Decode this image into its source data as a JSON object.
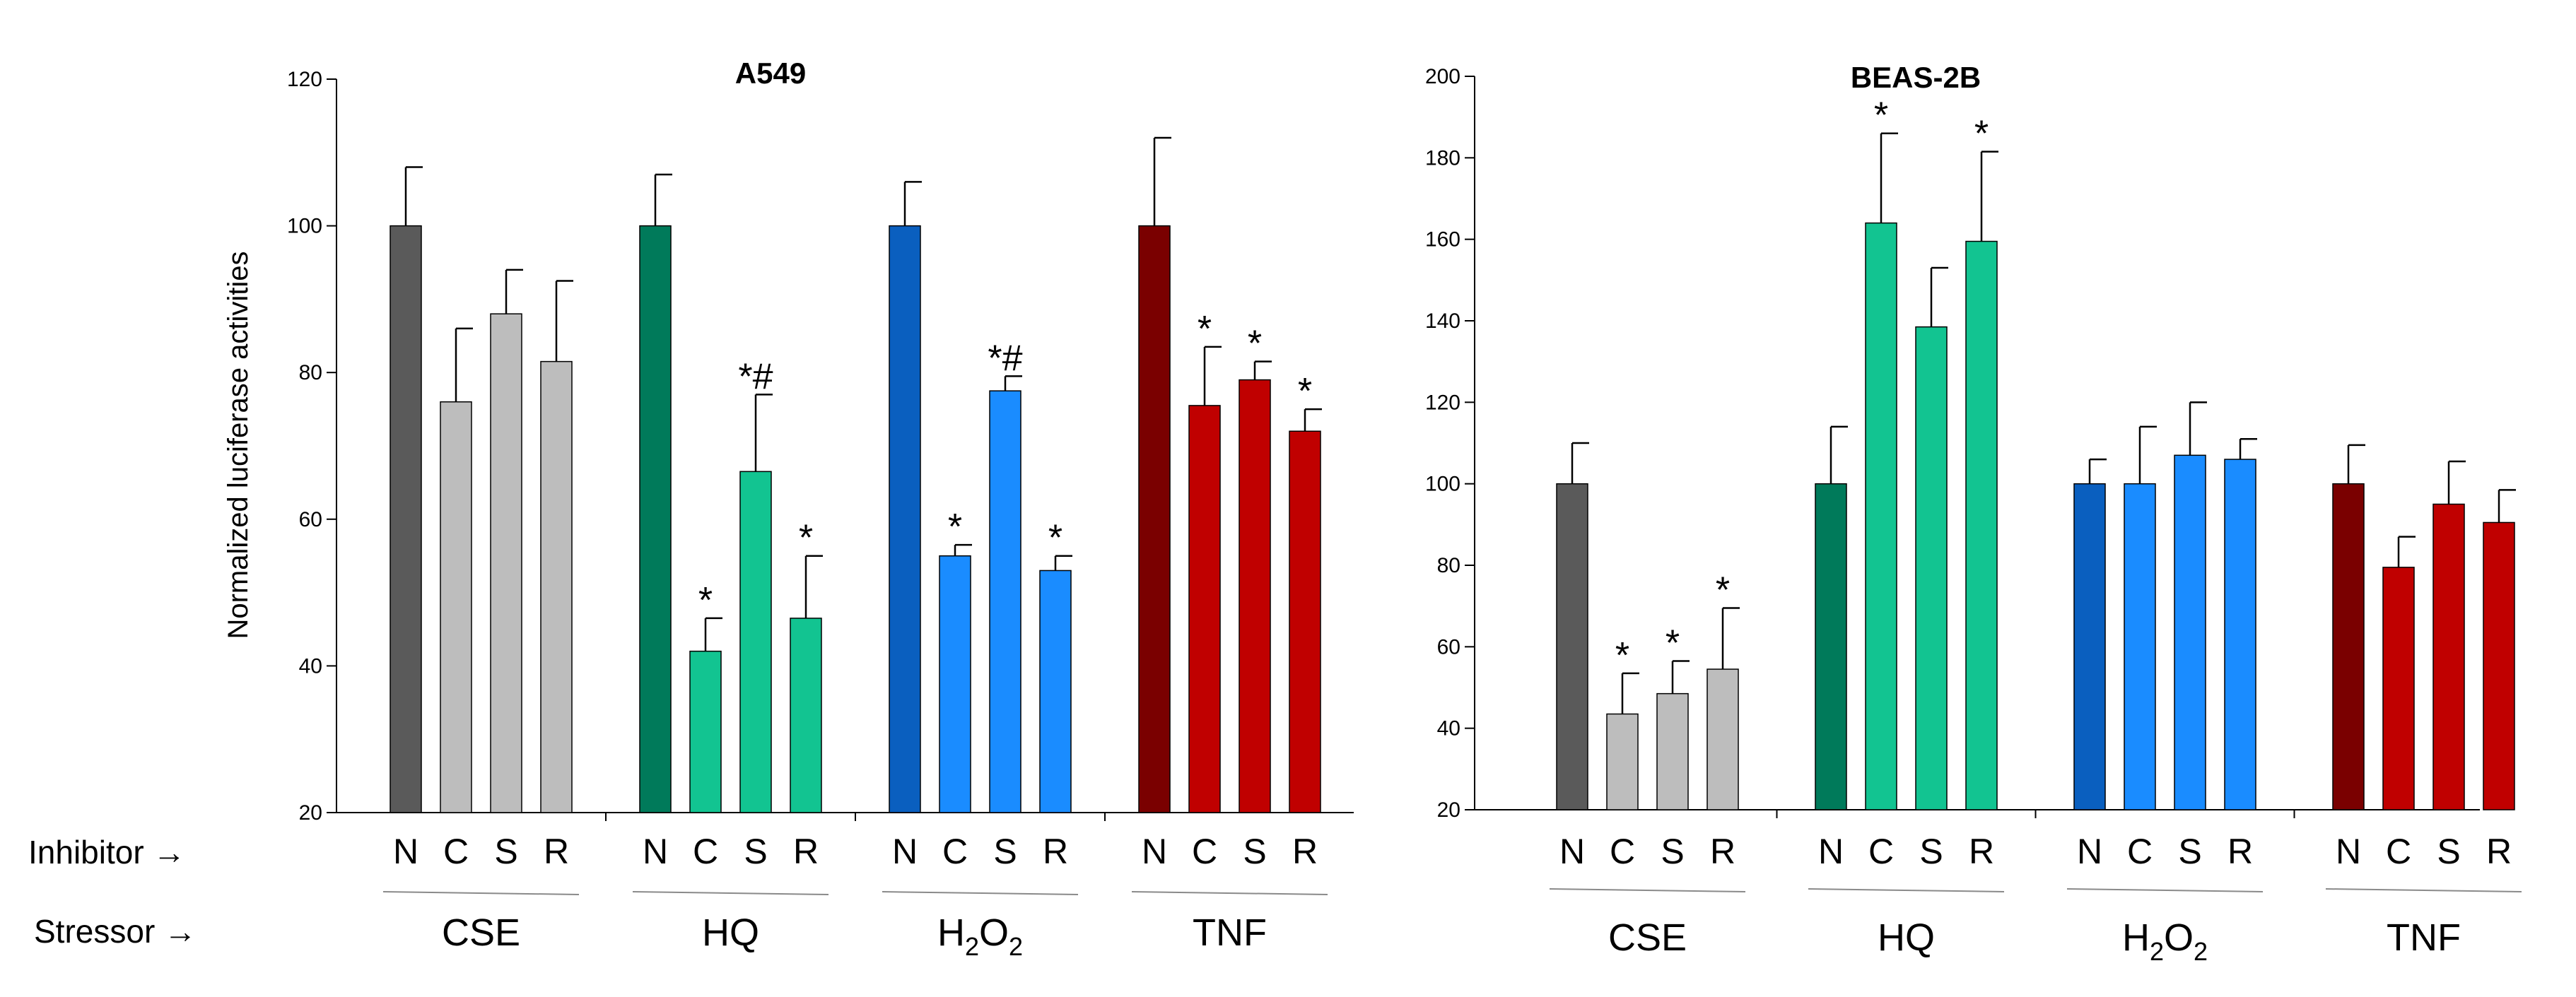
{
  "row_labels": {
    "inhibitor": "Inhibitor →",
    "stressor": "Stressor →"
  },
  "colors": {
    "CSE": {
      "N": "#5a5a5a",
      "inh": "#bdbdbd"
    },
    "HQ": {
      "N": "#007a5a",
      "inh": "#12c491"
    },
    "H2O2": {
      "N": "#0a5fbf",
      "inh": "#1a8cff"
    },
    "TNF": {
      "N": "#7a0000",
      "inh": "#c00000"
    }
  },
  "chart_data": [
    {
      "type": "bar",
      "title": "A549",
      "ylabel": "Normalized luciferase activities",
      "xlabel": "",
      "ylim": [
        20,
        120
      ],
      "yticks": [
        20,
        40,
        60,
        80,
        100,
        120
      ],
      "inhibitors": [
        "N",
        "C",
        "S",
        "R"
      ],
      "groups": [
        {
          "key": "CSE",
          "name": "CSE",
          "values": [
            100,
            76,
            88,
            81.5
          ],
          "errors": [
            8,
            10,
            6,
            11
          ],
          "annotations": [
            "",
            "",
            "",
            ""
          ]
        },
        {
          "key": "HQ",
          "name": "HQ",
          "values": [
            100,
            42,
            66.5,
            46.5
          ],
          "errors": [
            7,
            4.5,
            10.5,
            8.5
          ],
          "annotations": [
            "",
            "*",
            "*#",
            "*"
          ]
        },
        {
          "key": "H2O2",
          "name": "H2O2",
          "values": [
            100,
            55,
            77.5,
            53
          ],
          "errors": [
            6,
            1.5,
            2,
            2
          ],
          "annotations": [
            "",
            "*",
            "*#",
            "*"
          ]
        },
        {
          "key": "TNF",
          "name": "TNF",
          "values": [
            100,
            75.5,
            79,
            72
          ],
          "errors": [
            12,
            8,
            2.5,
            3
          ],
          "annotations": [
            "",
            "*",
            "*",
            "*"
          ]
        }
      ]
    },
    {
      "type": "bar",
      "title": "BEAS-2B",
      "ylabel": "",
      "xlabel": "",
      "ylim": [
        20,
        200
      ],
      "yticks": [
        20,
        40,
        60,
        80,
        100,
        120,
        140,
        160,
        180,
        200
      ],
      "inhibitors": [
        "N",
        "C",
        "S",
        "R"
      ],
      "groups": [
        {
          "key": "CSE",
          "name": "CSE",
          "values": [
            100,
            43.5,
            48.5,
            54.5
          ],
          "errors": [
            10,
            10,
            8,
            15
          ],
          "annotations": [
            "",
            "*",
            "*",
            "*"
          ]
        },
        {
          "key": "HQ",
          "name": "HQ",
          "values": [
            100,
            164,
            138.5,
            159.5
          ],
          "errors": [
            14,
            22,
            14.5,
            22
          ],
          "annotations": [
            "",
            "*",
            "",
            "*"
          ]
        },
        {
          "key": "H2O2",
          "name": "H2O2",
          "values": [
            100,
            100,
            107,
            106
          ],
          "errors": [
            6,
            14,
            13,
            5
          ],
          "annotations": [
            "",
            "",
            "",
            ""
          ]
        },
        {
          "key": "TNF",
          "name": "TNF",
          "values": [
            100,
            79.5,
            95,
            90.5
          ],
          "errors": [
            9.5,
            7.5,
            10.5,
            8
          ],
          "annotations": [
            "",
            "",
            "",
            ""
          ]
        }
      ]
    }
  ]
}
